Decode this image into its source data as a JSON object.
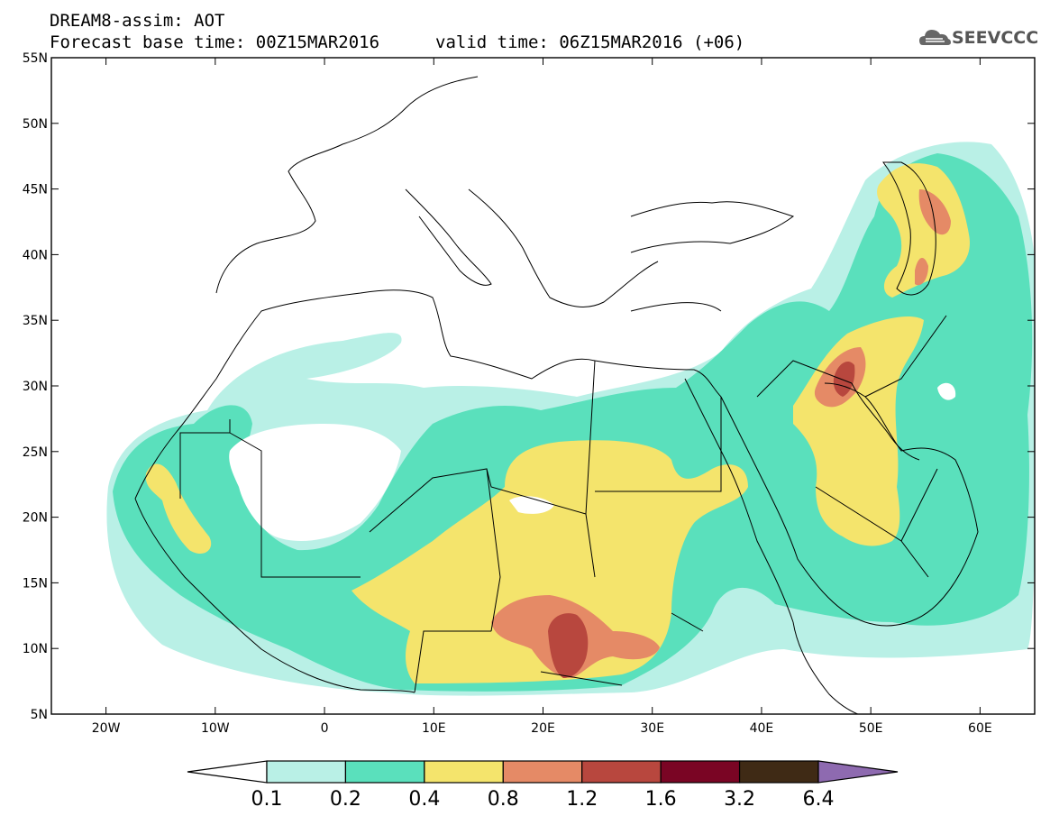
{
  "header": {
    "line1": "DREAM8-assim: AOT",
    "base_label": "Forecast base time: 00Z15MAR2016",
    "valid_label": "valid time: 06Z15MAR2016 (+06)"
  },
  "logo": {
    "text": "SEEVCCC",
    "icon": "cloud-icon"
  },
  "map": {
    "lon_range": [
      -25,
      65
    ],
    "lat_range": [
      5,
      55
    ],
    "lat_ticks": [
      "5N",
      "10N",
      "15N",
      "20N",
      "25N",
      "30N",
      "35N",
      "40N",
      "45N",
      "50N",
      "55N"
    ],
    "lon_ticks": [
      "20W",
      "10W",
      "0",
      "10E",
      "20E",
      "30E",
      "40E",
      "50E",
      "60E"
    ],
    "field": "aerosol optical thickness",
    "hotspots": [
      "Chad / Central African Republic border (~22E, 10N) > 1.2",
      "Iraq / Persian Gulf (~47E, 31N) 0.8–1.2",
      "Caspian coast (~56E, 43N) 0.8–1.2"
    ]
  },
  "colorbar": {
    "colors": [
      "#b9f0e6",
      "#5ae0bc",
      "#f4e46c",
      "#e58a66",
      "#b8473e",
      "#7a0524",
      "#3f2a15"
    ],
    "over_color": "#8e6ab0",
    "labels": [
      "0.1",
      "0.2",
      "0.4",
      "0.8",
      "1.2",
      "1.6",
      "3.2",
      "6.4"
    ]
  }
}
